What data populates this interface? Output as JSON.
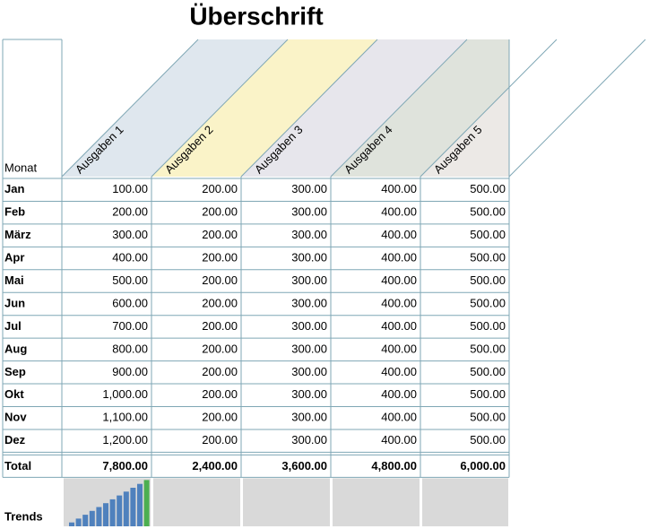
{
  "header": {
    "title": "Überschrift"
  },
  "table": {
    "columns": [
      "Monat",
      "Ausgaben 1",
      "Ausgaben 2",
      "Ausgaben 3",
      "Ausgaben 4",
      "Ausgaben 5"
    ],
    "column_colors": [
      "#dfe7ee",
      "#faf3c8",
      "#e7e6ec",
      "#dfe3dc",
      "#ece9e6"
    ],
    "rows": [
      [
        "Jan",
        "100.00",
        "200.00",
        "300.00",
        "400.00",
        "500.00"
      ],
      [
        "Feb",
        "200.00",
        "200.00",
        "300.00",
        "400.00",
        "500.00"
      ],
      [
        "März",
        "300.00",
        "200.00",
        "300.00",
        "400.00",
        "500.00"
      ],
      [
        "Apr",
        "400.00",
        "200.00",
        "300.00",
        "400.00",
        "500.00"
      ],
      [
        "Mai",
        "500.00",
        "200.00",
        "300.00",
        "400.00",
        "500.00"
      ],
      [
        "Jun",
        "600.00",
        "200.00",
        "300.00",
        "400.00",
        "500.00"
      ],
      [
        "Jul",
        "700.00",
        "200.00",
        "300.00",
        "400.00",
        "500.00"
      ],
      [
        "Aug",
        "800.00",
        "200.00",
        "300.00",
        "400.00",
        "500.00"
      ],
      [
        "Sep",
        "900.00",
        "200.00",
        "300.00",
        "400.00",
        "500.00"
      ],
      [
        "Okt",
        "1,000.00",
        "200.00",
        "300.00",
        "400.00",
        "500.00"
      ],
      [
        "Nov",
        "1,100.00",
        "200.00",
        "300.00",
        "400.00",
        "500.00"
      ],
      [
        "Dez",
        "1,200.00",
        "200.00",
        "300.00",
        "400.00",
        "500.00"
      ]
    ],
    "total": [
      "Total",
      "7,800.00",
      "2,400.00",
      "3,600.00",
      "4,800.00",
      "6,000.00"
    ],
    "trends_label": "Trends",
    "sparkline": {
      "color": "#4f81bd",
      "max_color": "#4caf50"
    }
  }
}
